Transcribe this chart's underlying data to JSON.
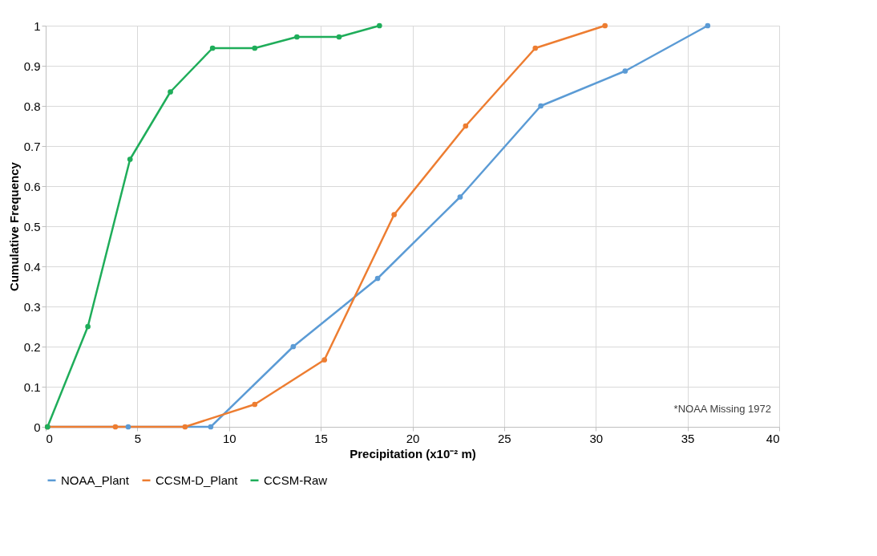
{
  "chart_data": {
    "type": "line",
    "xlabel": "Precipitation (x10⁻² m)",
    "ylabel": "Cumulative Frequency",
    "xlim": [
      0,
      40
    ],
    "xticks": [
      0,
      5,
      10,
      15,
      20,
      25,
      30,
      35,
      40
    ],
    "ylim": [
      0,
      1
    ],
    "yticks": [
      0,
      0.1,
      0.2,
      0.3,
      0.4,
      0.5,
      0.6,
      0.7,
      0.8,
      0.9,
      1
    ],
    "grid": true,
    "legend": "bottom",
    "marker": "circle",
    "line_style": "solid",
    "annotations": [
      "*NOAA Missing 1972"
    ],
    "series": [
      {
        "name": "NOAA_Plant",
        "color": "#5b9bd5",
        "x": [
          0.1,
          4.5,
          9.0,
          13.5,
          18.1,
          22.6,
          27.0,
          31.6,
          36.1
        ],
        "values": [
          0,
          0,
          0,
          0.2,
          0.37,
          0.573,
          0.8,
          0.887,
          1
        ]
      },
      {
        "name": "CCSM-D_Plant",
        "color": "#ed7d31",
        "x": [
          0.1,
          3.8,
          7.6,
          11.4,
          15.2,
          19.0,
          22.9,
          26.7,
          30.5
        ],
        "values": [
          0,
          0,
          0,
          0.056,
          0.167,
          0.529,
          0.75,
          0.944,
          1
        ]
      },
      {
        "name": "CCSM-Raw",
        "color": "#1fad5a",
        "x": [
          0.1,
          2.3,
          4.6,
          6.8,
          9.1,
          11.4,
          13.7,
          16.0,
          18.2
        ],
        "values": [
          0,
          0.25,
          0.667,
          0.835,
          0.944,
          0.944,
          0.972,
          0.972,
          1
        ]
      }
    ]
  }
}
